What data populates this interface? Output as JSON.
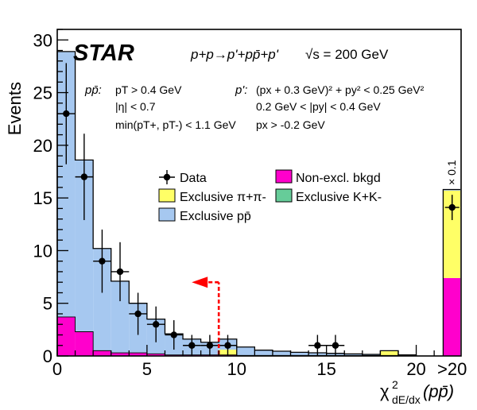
{
  "chart_data": {
    "type": "bar",
    "ylabel": "Events",
    "xlabel": "χ²dE/dx(pp̄)",
    "experiment": "STAR",
    "reaction": "p+p→p'+pp̄+p'",
    "energy": "√s = 200 GeV",
    "cuts_left_label": "pp̄:",
    "cuts_left": [
      "pT > 0.4 GeV",
      "|η| < 0.7",
      "min(pT+, pT-) < 1.1 GeV"
    ],
    "cuts_right_label": "p':",
    "cuts_right": [
      "(px + 0.3 GeV)² + py² < 0.25 GeV²",
      "0.2 GeV < |py| < 0.4 GeV",
      "px > -0.2 GeV"
    ],
    "xlim": [
      0,
      22.5
    ],
    "ylim": [
      0,
      31
    ],
    "xticks": [
      0,
      5,
      10,
      15,
      20
    ],
    "yticks": [
      0,
      5,
      10,
      15,
      20,
      25,
      30
    ],
    "overflow_label": ">20",
    "overflow_scale_label": "× 0.1",
    "bin_width": 1,
    "bin_lowedges": [
      0,
      1,
      2,
      3,
      4,
      5,
      6,
      7,
      8,
      9,
      10,
      11,
      12,
      13,
      14,
      15,
      16,
      17,
      18,
      19
    ],
    "series": [
      {
        "name": "Exclusive pp̄",
        "color": "#a6c8f0",
        "values": [
          25.2,
          16.3,
          9.7,
          6.8,
          4.7,
          3.3,
          2.0,
          1.5,
          1.2,
          1.0,
          0.8,
          0.5,
          0.4,
          0.3,
          0.25,
          0.2,
          0.15,
          0.1,
          0.05,
          0.05
        ]
      },
      {
        "name": "Exclusive π+π-",
        "color": "#ffff66",
        "values": [
          0,
          0,
          0,
          0,
          0,
          0,
          0,
          0,
          0,
          0.5,
          0,
          0,
          0,
          0,
          0,
          0,
          0,
          0,
          0.4,
          0
        ]
      },
      {
        "name": "Exclusive K+K-",
        "color": "#66cc99",
        "values": [
          0,
          0,
          0,
          0,
          0,
          0,
          0,
          0,
          0,
          0,
          0,
          0,
          0,
          0,
          0,
          0,
          0,
          0,
          0,
          0
        ]
      },
      {
        "name": "Non-excl. bkgd",
        "color": "#ff00cc",
        "values": [
          3.7,
          2.3,
          0.5,
          0.3,
          0.3,
          0.2,
          0.1,
          0.1,
          0.1,
          0.1,
          0.05,
          0.05,
          0.05,
          0.05,
          0.05,
          0.05,
          0.05,
          0.05,
          0.05,
          0.05
        ]
      }
    ],
    "data": {
      "name": "Data",
      "x": [
        0.5,
        1.5,
        2.5,
        3.5,
        4.5,
        5.5,
        6.5,
        7.5,
        8.5,
        9.5,
        14.5,
        15.5
      ],
      "y": [
        23,
        17,
        9,
        8,
        4,
        3,
        2,
        1,
        1,
        1,
        1,
        1
      ],
      "yerr": [
        4.8,
        4.1,
        3.0,
        2.8,
        2.0,
        1.7,
        1.4,
        1.0,
        1.0,
        1.0,
        1.0,
        1.0
      ]
    },
    "overflow": {
      "total": 15.8,
      "pipi": 8.3,
      "bkgd": 7.4,
      "ppbar": 0.1,
      "data_y": 14.1,
      "data_yerr": 1.2
    },
    "cut_arrow_x": 9.0,
    "cut_arrow_y_top": 7.0,
    "legend": [
      {
        "label": "Data",
        "type": "marker"
      },
      {
        "label": "Non-excl. bkgd",
        "type": "box",
        "color": "#ff00cc"
      },
      {
        "label": "Exclusive π+π-",
        "type": "box",
        "color": "#ffff66"
      },
      {
        "label": "Exclusive K+K-",
        "type": "box",
        "color": "#66cc99"
      },
      {
        "label": "Exclusive pp̄",
        "type": "box",
        "color": "#a6c8f0"
      }
    ]
  }
}
